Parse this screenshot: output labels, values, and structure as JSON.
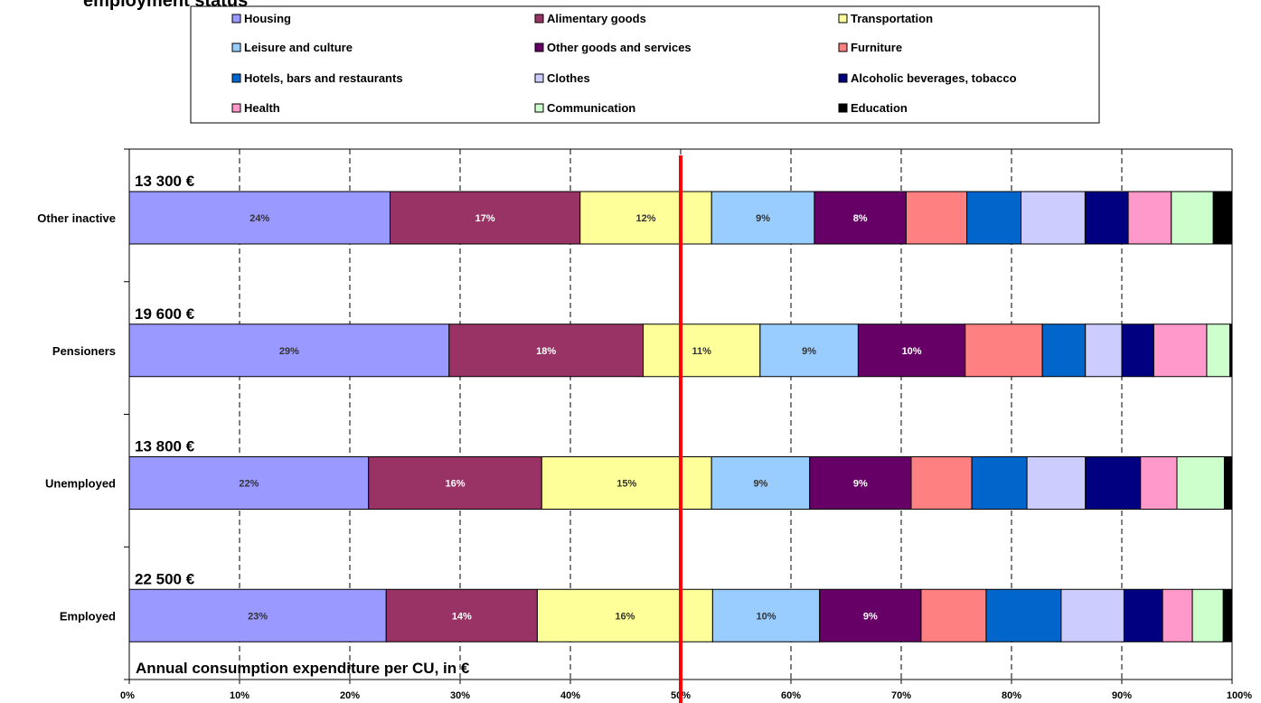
{
  "title_fragment": "employment status",
  "chart_data": {
    "type": "bar",
    "orientation": "horizontal",
    "stacked": "percent",
    "categories": [
      "Other inactive",
      "Pensioners",
      "Unemployed",
      "Employed"
    ],
    "totals": [
      "13 300 €",
      "19 600 €",
      "13 800 €",
      "22 500 €"
    ],
    "xlim": [
      0,
      100
    ],
    "xticks": [
      "0%",
      "10%",
      "20%",
      "30%",
      "40%",
      "50%",
      "60%",
      "70%",
      "80%",
      "90%",
      "100%"
    ],
    "grid": true,
    "reference_line": {
      "x": 50,
      "color": "#FF0000"
    },
    "annotation": "Annual consumption expenditure per CU, in €",
    "legend": {
      "placement": "top",
      "columns": 3,
      "order": [
        "Housing",
        "Alimentary goods",
        "Transportation",
        "Leisure and culture",
        "Other goods and services",
        "Furniture",
        "Hotels, bars and restaurants",
        "Clothes",
        "Alcoholic beverages, tobacco",
        "Health",
        "Communication",
        "Education"
      ]
    },
    "series": [
      {
        "name": "Housing",
        "color": "#9999FF",
        "text_color": "#333333",
        "values": [
          23.6,
          29.0,
          21.7,
          23.3
        ],
        "labels": [
          "24%",
          "29%",
          "22%",
          "23%"
        ]
      },
      {
        "name": "Alimentary goods",
        "color": "#993366",
        "text_color": "#FFFFFF",
        "values": [
          17.2,
          17.6,
          15.7,
          13.7
        ],
        "labels": [
          "17%",
          "18%",
          "16%",
          "14%"
        ]
      },
      {
        "name": "Transportation",
        "color": "#FFFF99",
        "text_color": "#333333",
        "values": [
          11.9,
          10.6,
          15.4,
          15.9
        ],
        "labels": [
          "12%",
          "11%",
          "15%",
          "16%"
        ]
      },
      {
        "name": "Leisure and culture",
        "color": "#99CCFF",
        "text_color": "#333333",
        "values": [
          9.3,
          8.9,
          8.9,
          9.7
        ],
        "labels": [
          "9%",
          "9%",
          "9%",
          "10%"
        ]
      },
      {
        "name": "Other goods and services",
        "color": "#660066",
        "text_color": "#FFFFFF",
        "values": [
          8.3,
          9.7,
          9.2,
          9.2
        ],
        "labels": [
          "8%",
          "10%",
          "9%",
          "9%"
        ]
      },
      {
        "name": "Furniture",
        "color": "#FF8080",
        "text_color": "#333333",
        "values": [
          5.5,
          7.0,
          5.5,
          5.9
        ],
        "labels": [
          "",
          "",
          "",
          ""
        ]
      },
      {
        "name": "Hotels, bars and restaurants",
        "color": "#0066CC",
        "text_color": "#FFFFFF",
        "values": [
          4.9,
          3.9,
          5.0,
          6.8
        ],
        "labels": [
          "",
          "",
          "",
          ""
        ]
      },
      {
        "name": "Clothes",
        "color": "#CCCCFF",
        "text_color": "#333333",
        "values": [
          5.8,
          3.3,
          5.3,
          5.7
        ],
        "labels": [
          "",
          "",
          "",
          ""
        ]
      },
      {
        "name": "Alcoholic beverages, tobacco",
        "color": "#000080",
        "text_color": "#FFFFFF",
        "values": [
          3.9,
          2.9,
          5.0,
          3.5
        ],
        "labels": [
          "",
          "",
          "",
          ""
        ]
      },
      {
        "name": "Health",
        "color": "#FF99CC",
        "text_color": "#333333",
        "values": [
          3.9,
          4.8,
          3.3,
          2.7
        ],
        "labels": [
          "",
          "",
          "",
          ""
        ]
      },
      {
        "name": "Communication",
        "color": "#CCFFCC",
        "text_color": "#333333",
        "values": [
          3.8,
          2.1,
          4.3,
          2.8
        ],
        "labels": [
          "",
          "",
          "",
          ""
        ]
      },
      {
        "name": "Education",
        "color": "#000000",
        "text_color": "#FFFFFF",
        "values": [
          1.7,
          0.2,
          0.7,
          0.8
        ],
        "labels": [
          "",
          "",
          "",
          ""
        ]
      }
    ]
  }
}
